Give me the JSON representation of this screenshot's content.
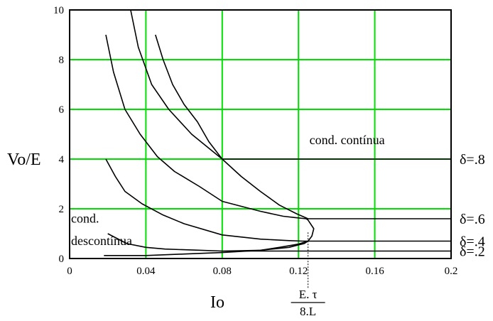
{
  "chart_data": {
    "type": "line",
    "xlabel": "Io",
    "ylabel": "Vo/E",
    "xlim": [
      0,
      0.2
    ],
    "ylim": [
      0,
      10
    ],
    "x_ticks": [
      "0",
      "0.04",
      "0.08",
      "0.12",
      "0.16",
      "0.2"
    ],
    "y_ticks": [
      "0",
      "2",
      "4",
      "6",
      "8",
      "10"
    ],
    "grid": true,
    "grid_color": "#00e000",
    "line_color": "#000000",
    "x_marker_value": 0.125,
    "x_marker_label": {
      "numerator": "E. τ",
      "denominator": "8.L"
    },
    "annotations": [
      {
        "text": "cond. contínua",
        "x": 0.125,
        "y": 4.6
      },
      {
        "text": "cond.",
        "x": 0.0,
        "y": 1.45
      },
      {
        "text": "descontínua",
        "x": 0.0,
        "y": 0.55
      }
    ],
    "series": [
      {
        "name": "δ=.8",
        "values": [
          [
            0.045,
            9.0
          ],
          [
            0.049,
            8.0
          ],
          [
            0.054,
            7.0
          ],
          [
            0.06,
            6.2
          ],
          [
            0.067,
            5.5
          ],
          [
            0.073,
            4.7
          ],
          [
            0.08,
            4.0
          ],
          [
            0.2,
            4.0
          ]
        ]
      },
      {
        "name": "δ=.6",
        "values": [
          [
            0.032,
            10.0
          ],
          [
            0.036,
            8.5
          ],
          [
            0.043,
            7.0
          ],
          [
            0.052,
            6.0
          ],
          [
            0.064,
            5.0
          ],
          [
            0.08,
            4.0
          ],
          [
            0.09,
            3.3
          ],
          [
            0.1,
            2.7
          ],
          [
            0.11,
            2.15
          ],
          [
            0.119,
            1.8
          ],
          [
            0.125,
            1.6
          ],
          [
            0.2,
            1.6
          ]
        ]
      },
      {
        "name": "δ=.4",
        "values": [
          [
            0.019,
            9.0
          ],
          [
            0.023,
            7.5
          ],
          [
            0.029,
            6.0
          ],
          [
            0.037,
            5.0
          ],
          [
            0.046,
            4.1
          ],
          [
            0.055,
            3.5
          ],
          [
            0.068,
            2.9
          ],
          [
            0.08,
            2.3
          ],
          [
            0.1,
            1.9
          ],
          [
            0.112,
            1.7
          ],
          [
            0.118,
            1.65
          ],
          [
            0.124,
            1.6
          ],
          [
            0.125,
            1.55
          ],
          [
            0.128,
            1.2
          ],
          [
            0.127,
            0.9
          ],
          [
            0.125,
            0.7
          ],
          [
            0.2,
            0.7
          ]
        ]
      },
      {
        "name": "δ=.2",
        "values": [
          [
            0.019,
            4.0
          ],
          [
            0.024,
            3.3
          ],
          [
            0.029,
            2.7
          ],
          [
            0.038,
            2.2
          ],
          [
            0.049,
            1.75
          ],
          [
            0.06,
            1.4
          ],
          [
            0.08,
            0.95
          ],
          [
            0.1,
            0.78
          ],
          [
            0.115,
            0.72
          ],
          [
            0.122,
            0.7
          ],
          [
            0.125,
            0.7
          ],
          [
            0.123,
            0.6
          ],
          [
            0.12,
            0.55
          ],
          [
            0.115,
            0.45
          ],
          [
            0.1,
            0.33
          ],
          [
            0.08,
            0.3
          ],
          [
            0.2,
            0.3
          ]
        ]
      },
      {
        "name": "",
        "values": [
          [
            0.02,
            1.0
          ],
          [
            0.03,
            0.6
          ],
          [
            0.04,
            0.45
          ],
          [
            0.05,
            0.38
          ],
          [
            0.065,
            0.34
          ],
          [
            0.08,
            0.3
          ]
        ]
      },
      {
        "name": "",
        "values": [
          [
            0.018,
            0.12
          ],
          [
            0.04,
            0.12
          ],
          [
            0.06,
            0.18
          ],
          [
            0.08,
            0.24
          ],
          [
            0.1,
            0.33
          ],
          [
            0.11,
            0.45
          ],
          [
            0.12,
            0.58
          ],
          [
            0.125,
            0.7
          ]
        ]
      }
    ],
    "delta_labels": [
      {
        "text": "δ=.8",
        "y": 4.0
      },
      {
        "text": "δ=.6",
        "y": 1.6
      },
      {
        "text": "δ=.4",
        "y": 0.7
      },
      {
        "text": "δ=.2",
        "y": 0.3
      }
    ]
  }
}
